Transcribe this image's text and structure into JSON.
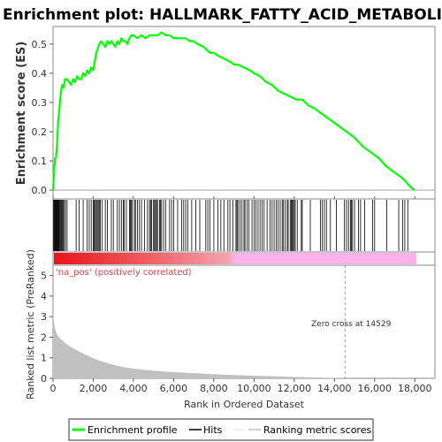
{
  "chart_data": {
    "type": "line",
    "title": "Enrichment plot: HALLMARK_FATTY_ACID_METABOLISM",
    "es_panel": {
      "ylabel": "Enrichment score (ES)",
      "ylim": [
        -0.03,
        0.56
      ],
      "yticks": [
        0.0,
        0.1,
        0.2,
        0.3,
        0.4,
        0.5
      ],
      "ytick_labels": [
        "0.0",
        "0.1",
        "0.2",
        "0.3",
        "0.4",
        "0.5"
      ],
      "series": [
        {
          "name": "Enrichment profile",
          "color": "#00ff00",
          "x": [
            0,
            60,
            100,
            150,
            200,
            260,
            320,
            380,
            450,
            520,
            600,
            700,
            800,
            900,
            1000,
            1100,
            1200,
            1300,
            1400,
            1500,
            1600,
            1700,
            1800,
            1900,
            2000,
            2100,
            2150,
            2200,
            2300,
            2400,
            2500,
            2600,
            2700,
            2800,
            2900,
            3000,
            3100,
            3200,
            3300,
            3400,
            3500,
            3600,
            3700,
            3800,
            3900,
            4000,
            4200,
            4400,
            4600,
            4800,
            5000,
            5200,
            5400,
            5600,
            5800,
            6000,
            6200,
            6400,
            6600,
            6800,
            7000,
            7200,
            7500,
            7800,
            8000,
            8200,
            8500,
            8800,
            9000,
            9200,
            9500,
            9800,
            10000,
            10300,
            10600,
            10900,
            11200,
            11500,
            11800,
            12100,
            12400,
            12700,
            13000,
            13400,
            13800,
            14200,
            14600,
            15000,
            15400,
            15800,
            16200,
            16600,
            17000,
            17400,
            17800,
            18000
          ],
          "y": [
            0.0,
            0.07,
            0.11,
            0.11,
            0.16,
            0.24,
            0.28,
            0.33,
            0.36,
            0.35,
            0.38,
            0.38,
            0.37,
            0.36,
            0.38,
            0.37,
            0.39,
            0.38,
            0.38,
            0.4,
            0.39,
            0.41,
            0.4,
            0.42,
            0.41,
            0.45,
            0.47,
            0.48,
            0.5,
            0.51,
            0.5,
            0.49,
            0.51,
            0.5,
            0.51,
            0.5,
            0.49,
            0.51,
            0.5,
            0.52,
            0.51,
            0.51,
            0.5,
            0.52,
            0.53,
            0.53,
            0.52,
            0.53,
            0.52,
            0.53,
            0.53,
            0.53,
            0.54,
            0.53,
            0.53,
            0.52,
            0.52,
            0.52,
            0.52,
            0.51,
            0.51,
            0.5,
            0.49,
            0.47,
            0.47,
            0.46,
            0.45,
            0.44,
            0.43,
            0.43,
            0.42,
            0.41,
            0.4,
            0.39,
            0.37,
            0.36,
            0.34,
            0.33,
            0.32,
            0.31,
            0.31,
            0.29,
            0.28,
            0.26,
            0.24,
            0.22,
            0.2,
            0.18,
            0.15,
            0.13,
            0.11,
            0.08,
            0.06,
            0.04,
            0.01,
            0.0
          ]
        }
      ]
    },
    "hits_panel": {
      "series": [
        {
          "name": "Hits",
          "color": "#000000",
          "x": [
            30,
            60,
            90,
            120,
            150,
            180,
            210,
            240,
            270,
            300,
            340,
            380,
            420,
            460,
            500,
            560,
            620,
            700,
            1150,
            1300,
            1500,
            1700,
            1800,
            1900,
            2000,
            2050,
            2100,
            2150,
            2200,
            2250,
            2300,
            2350,
            2450,
            2600,
            2700,
            2900,
            3000,
            3200,
            3300,
            3400,
            3500,
            3550,
            3650,
            3800,
            3850,
            3900,
            3950,
            4050,
            4100,
            4200,
            4300,
            4400,
            4550,
            4700,
            4800,
            4850,
            4900,
            5000,
            5050,
            5100,
            5150,
            5200,
            5300,
            5350,
            5400,
            5500,
            5600,
            5800,
            5900,
            6000,
            6200,
            6400,
            6500,
            6600,
            6700,
            6900,
            7100,
            7300,
            7600,
            7700,
            7800,
            8000,
            8200,
            8350,
            8500,
            8700,
            8800,
            8950,
            9100,
            9150,
            9200,
            9300,
            9400,
            9500,
            9550,
            9650,
            9750,
            9900,
            10000,
            10100,
            10200,
            10300,
            10400,
            10500,
            10650,
            10800,
            10900,
            11000,
            11100,
            11200,
            11300,
            11400,
            11450,
            11550,
            11650,
            11700,
            11800,
            11850,
            11900,
            11950,
            12000,
            12050,
            12150,
            12350,
            12400,
            12800,
            13300,
            13400,
            13500,
            13600,
            13800,
            14100,
            14500,
            14600,
            14700,
            14800,
            14850,
            14900,
            15000,
            15200,
            15300,
            15500,
            15900,
            16000,
            16600,
            17200,
            17400,
            17500,
            17650
          ]
        }
      ]
    },
    "metric_panel": {
      "ylabel": "Ranked list metric (PreRanked)",
      "xlabel": "Rank in Ordered Dataset",
      "ylim": [
        0,
        5.5
      ],
      "yticks": [
        0,
        1,
        2,
        3,
        4,
        5
      ],
      "ytick_labels": [
        "0",
        "1",
        "2",
        "3",
        "4",
        "5"
      ],
      "xlim": [
        0,
        19000
      ],
      "xticks": [
        0,
        2000,
        4000,
        6000,
        8000,
        10000,
        12000,
        14000,
        16000,
        18000
      ],
      "xtick_labels": [
        "0",
        "2,000",
        "4,000",
        "6,000",
        "8,000",
        "10,000",
        "12,000",
        "14,000",
        "16,000",
        "18,000"
      ],
      "series": [
        {
          "name": "Ranking metric scores",
          "color": "#c0c0c0",
          "x": [
            0,
            20,
            50,
            100,
            200,
            300,
            400,
            600,
            800,
            1000,
            1300,
            1600,
            2000,
            2500,
            3000,
            3500,
            4000,
            5000,
            6000,
            7000,
            8000,
            9000,
            10000,
            11000,
            12000,
            13000,
            14000,
            14529
          ],
          "y": [
            3.4,
            3.1,
            2.7,
            2.4,
            2.15,
            2.0,
            1.9,
            1.72,
            1.58,
            1.46,
            1.3,
            1.16,
            0.98,
            0.8,
            0.66,
            0.55,
            0.47,
            0.37,
            0.3,
            0.25,
            0.2,
            0.16,
            0.13,
            0.1,
            0.07,
            0.05,
            0.02,
            0.0
          ]
        }
      ],
      "annotations": {
        "positive_label": "'na_pos' (positively correlated)",
        "zero_cross_label": "Zero cross at 14529",
        "zero_cross_x": 14529
      }
    },
    "legend": {
      "placement": "bottom",
      "entries": [
        "Enrichment profile",
        "Hits",
        "Ranking metric scores"
      ]
    },
    "colors": {
      "profile": "#00ff00",
      "hits": "#000000",
      "metric": "#c0c0c0",
      "heat_start": "#e8141a",
      "heat_mid": "#f4a3b0",
      "heat_end": "#f9b3e8",
      "positive_label": "#e8404a"
    }
  }
}
